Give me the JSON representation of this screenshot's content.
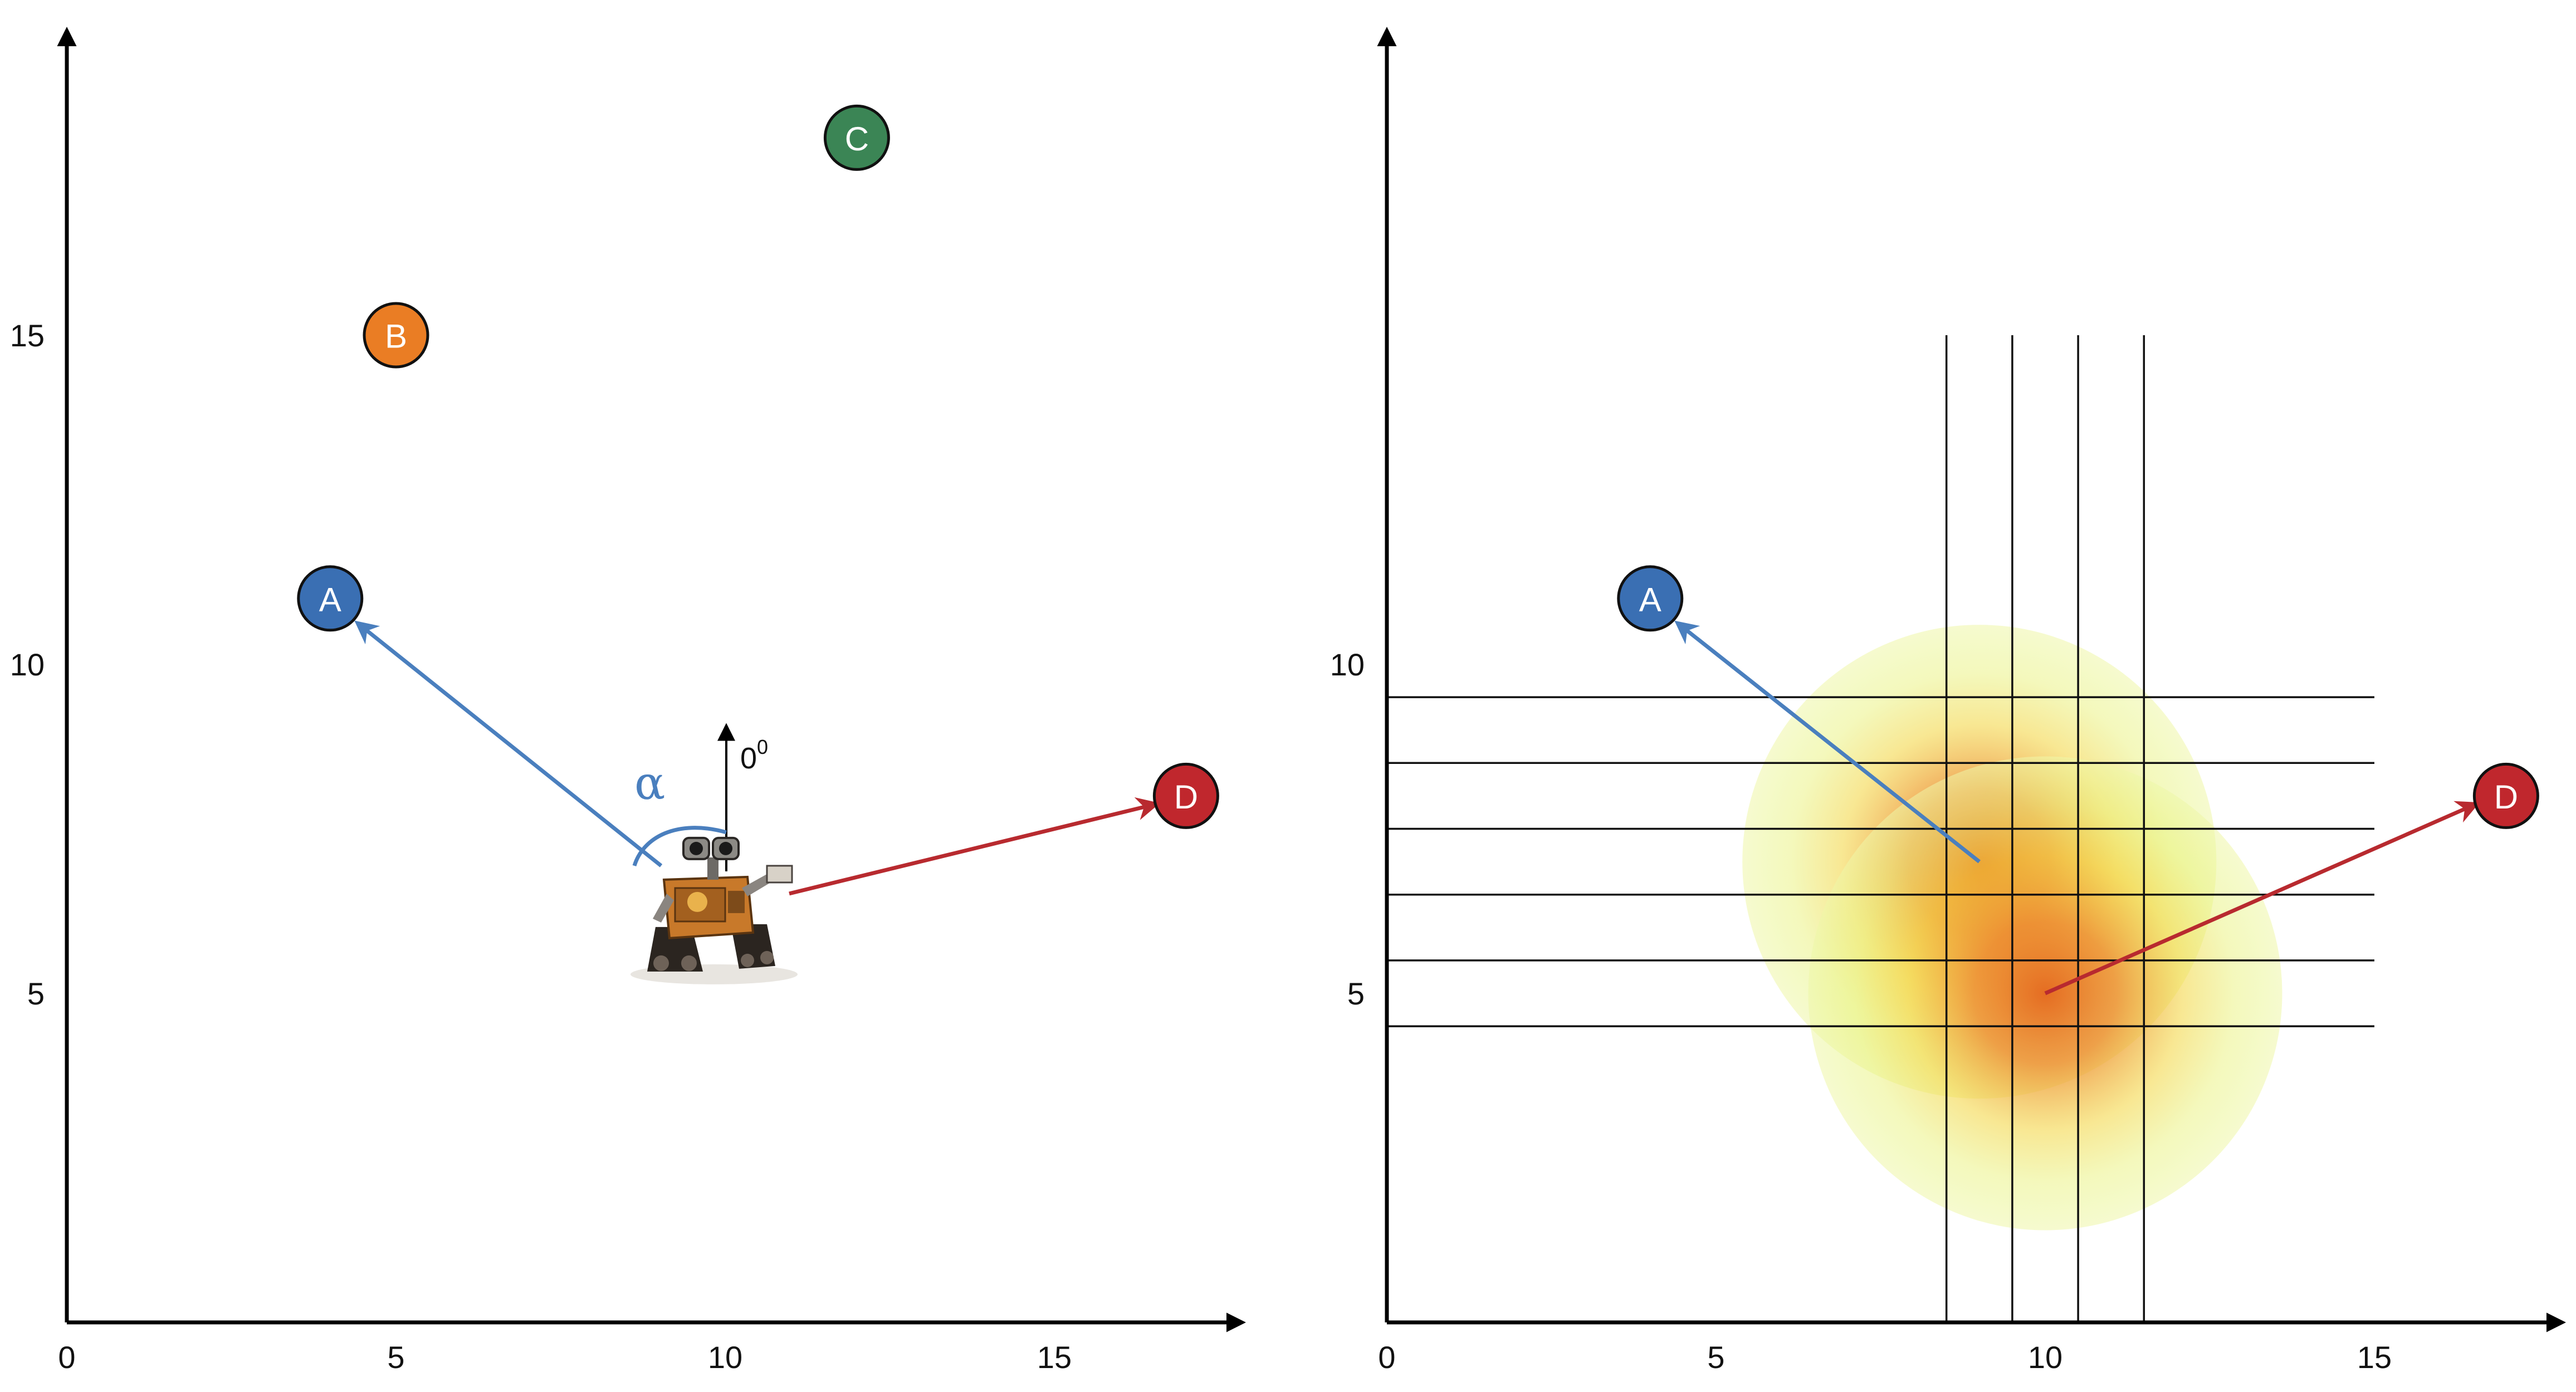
{
  "colors": {
    "A": "#3a6fb3",
    "B": "#ea7d24",
    "C": "#3b8555",
    "D": "#c0272d",
    "arrow_A": "#4a7fbe",
    "arrow_D": "#b82a2f"
  },
  "left_panel": {
    "x_ticks": [
      "0",
      "5",
      "10",
      "15"
    ],
    "y_ticks": [
      "5",
      "10",
      "15"
    ],
    "landmarks": [
      {
        "label": "A",
        "x": 4,
        "y": 11,
        "color_key": "A"
      },
      {
        "label": "B",
        "x": 5,
        "y": 15,
        "color_key": "B"
      },
      {
        "label": "C",
        "x": 12,
        "y": 18,
        "color_key": "C"
      },
      {
        "label": "D",
        "x": 17,
        "y": 8,
        "color_key": "D"
      }
    ],
    "robot": {
      "name": "robot-image",
      "x": 10,
      "y": 5.5
    },
    "heading_label": "0",
    "heading_sup": "0",
    "angle_label": "α"
  },
  "right_panel": {
    "x_ticks": [
      "0",
      "5",
      "10",
      "15"
    ],
    "y_ticks": [
      "5",
      "10"
    ],
    "landmarks": [
      {
        "label": "A",
        "x": 4,
        "y": 11,
        "color_key": "A"
      },
      {
        "label": "D",
        "x": 17,
        "y": 8,
        "color_key": "D"
      }
    ],
    "grid_x": [
      8.5,
      9.5,
      10.5,
      11.5
    ],
    "grid_y": [
      4.5,
      5.5,
      6.5,
      7.5,
      8.5,
      9.5
    ],
    "heat_blobs": [
      {
        "x": 9,
        "y": 7,
        "r": 3
      },
      {
        "x": 10,
        "y": 5,
        "r": 3
      }
    ]
  }
}
